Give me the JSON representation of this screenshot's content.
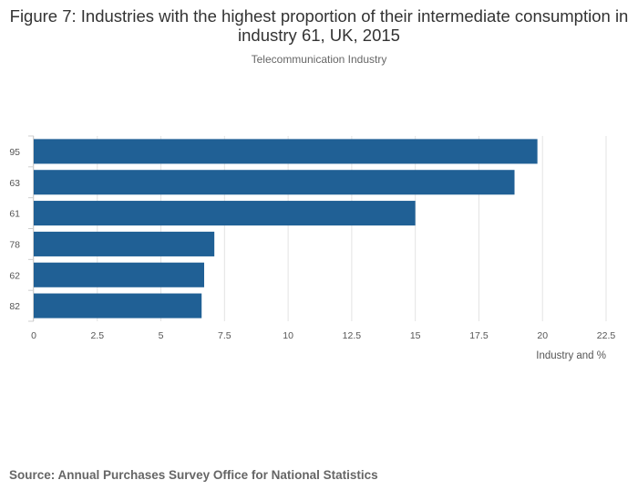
{
  "chart_data": {
    "type": "bar",
    "orientation": "horizontal",
    "title": "Figure 7: Industries with the highest proportion of their intermediate consumption in industry 61, UK, 2015",
    "subtitle": "Telecommunication Industry",
    "categories": [
      "95",
      "63",
      "61",
      "78",
      "62",
      "82"
    ],
    "values": [
      19.8,
      18.9,
      15.0,
      7.1,
      6.7,
      6.6
    ],
    "xlabel": "Industry and %",
    "ylabel": "",
    "xlim": [
      0,
      22.5
    ],
    "xticks": [
      "0",
      "2.5",
      "5",
      "7.5",
      "10",
      "12.5",
      "15",
      "17.5",
      "20",
      "22.5"
    ],
    "grid": true,
    "bar_color": "#206095"
  },
  "source": "Source: Annual Purchases Survey Office for National Statistics"
}
